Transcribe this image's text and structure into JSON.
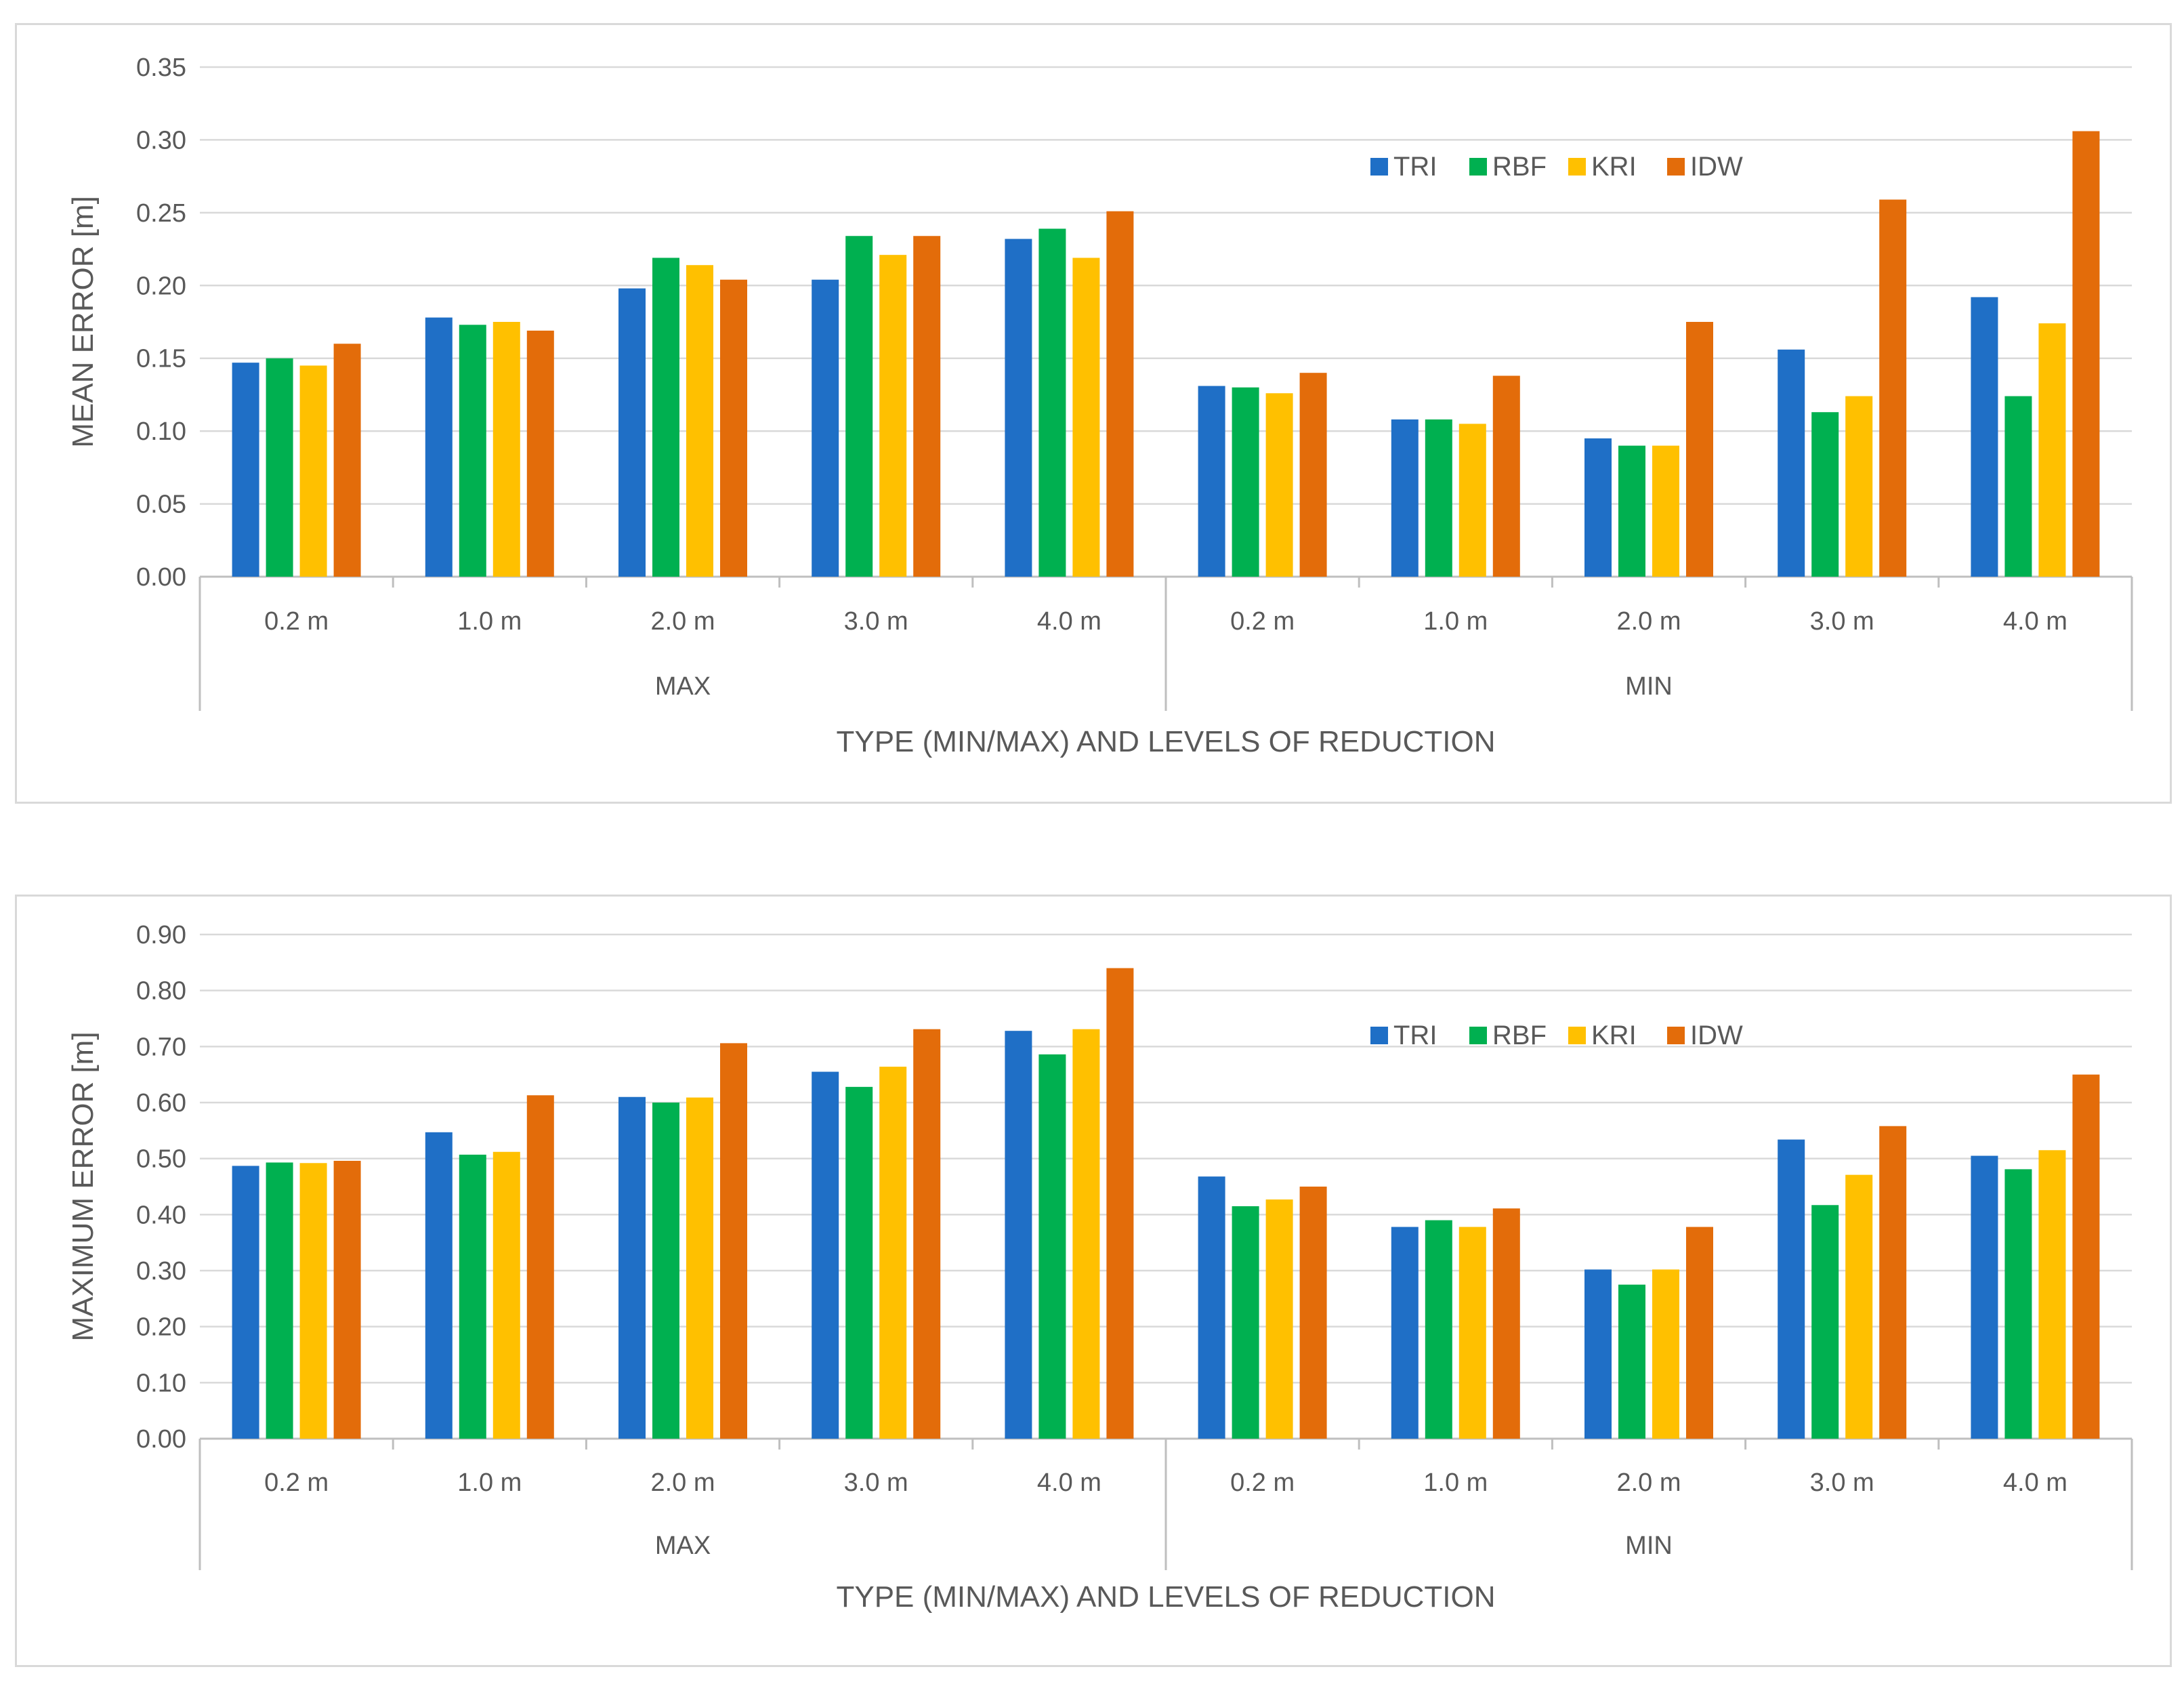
{
  "chart_data": [
    {
      "type": "bar",
      "ylabel": "MEAN ERROR [m]",
      "xlabel": "TYPE  (MIN/MAX) AND LEVELS OF REDUCTION",
      "ylim": [
        0,
        0.35
      ],
      "yticks": [
        "0.00",
        "0.05",
        "0.10",
        "0.15",
        "0.20",
        "0.25",
        "0.30",
        "0.35"
      ],
      "groups": [
        "MAX",
        "MIN"
      ],
      "categories": [
        "0.2 m",
        "1.0 m",
        "2.0 m",
        "3.0 m",
        "4.0 m",
        "0.2 m",
        "1.0 m",
        "2.0 m",
        "3.0 m",
        "4.0 m"
      ],
      "legend_position": "top-right",
      "series": [
        {
          "name": "TRI",
          "color": "#1f6fc6",
          "values": [
            0.147,
            0.178,
            0.198,
            0.204,
            0.232,
            0.131,
            0.108,
            0.095,
            0.156,
            0.192
          ]
        },
        {
          "name": "RBF",
          "color": "#00b050",
          "values": [
            0.15,
            0.173,
            0.219,
            0.234,
            0.239,
            0.13,
            0.108,
            0.09,
            0.113,
            0.124
          ]
        },
        {
          "name": "KRI",
          "color": "#ffc000",
          "values": [
            0.145,
            0.175,
            0.214,
            0.221,
            0.219,
            0.126,
            0.105,
            0.09,
            0.124,
            0.174
          ]
        },
        {
          "name": "IDW",
          "color": "#e36c0a",
          "values": [
            0.16,
            0.169,
            0.204,
            0.234,
            0.251,
            0.14,
            0.138,
            0.175,
            0.259,
            0.306
          ]
        }
      ]
    },
    {
      "type": "bar",
      "ylabel": "MAXIMUM  ERROR [m]",
      "xlabel": "TYPE (MIN/MAX)  AND LEVELS OF REDUCTION",
      "ylim": [
        0,
        0.9
      ],
      "yticks": [
        "0.00",
        "0.10",
        "0.20",
        "0.30",
        "0.40",
        "0.50",
        "0.60",
        "0.70",
        "0.80",
        "0.90"
      ],
      "groups": [
        "MAX",
        "MIN"
      ],
      "categories": [
        "0.2 m",
        "1.0 m",
        "2.0 m",
        "3.0 m",
        "4.0 m",
        "0.2 m",
        "1.0 m",
        "2.0 m",
        "3.0 m",
        "4.0 m"
      ],
      "legend_position": "top-right",
      "series": [
        {
          "name": "TRI",
          "color": "#1f6fc6",
          "values": [
            0.487,
            0.547,
            0.61,
            0.655,
            0.728,
            0.468,
            0.378,
            0.302,
            0.534,
            0.505
          ]
        },
        {
          "name": "RBF",
          "color": "#00b050",
          "values": [
            0.493,
            0.507,
            0.6,
            0.628,
            0.686,
            0.415,
            0.39,
            0.275,
            0.417,
            0.481
          ]
        },
        {
          "name": "KRI",
          "color": "#ffc000",
          "values": [
            0.492,
            0.512,
            0.609,
            0.664,
            0.731,
            0.427,
            0.378,
            0.302,
            0.471,
            0.515
          ]
        },
        {
          "name": "IDW",
          "color": "#e36c0a",
          "values": [
            0.496,
            0.613,
            0.706,
            0.731,
            0.84,
            0.45,
            0.411,
            0.378,
            0.558,
            0.65
          ]
        }
      ]
    }
  ]
}
